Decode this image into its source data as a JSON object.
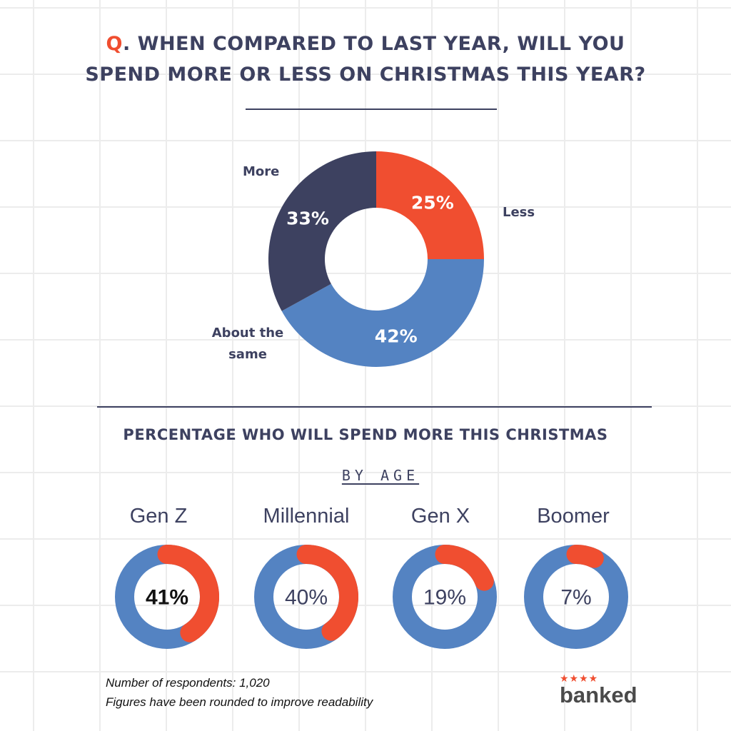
{
  "title": {
    "prefix": "Q",
    "line1_rest": ". WHEN COMPARED TO LAST YEAR, WILL YOU",
    "line2": "SPEND MORE OR LESS ON CHRISTMAS THIS YEAR?"
  },
  "colors": {
    "less": "#f04e30",
    "about_same": "#5483c2",
    "more": "#3d4160",
    "text": "#3d4160"
  },
  "chart_data": [
    {
      "type": "pie",
      "slices": [
        {
          "label": "Less",
          "value": 25,
          "display": "25%"
        },
        {
          "label": "About the same",
          "value": 42,
          "display": "42%"
        },
        {
          "label": "More",
          "value": 33,
          "display": "33%"
        }
      ],
      "labels": {
        "more": "More",
        "less": "Less",
        "about_same_line1": "About the",
        "about_same_line2": "same"
      }
    },
    {
      "type": "pie",
      "title": "PERCENTAGE WHO WILL SPEND MORE THIS CHRISTMAS",
      "subtitle": "BY AGE",
      "categories": [
        "Gen Z",
        "Millennial",
        "Gen X",
        "Boomer"
      ],
      "values": [
        41,
        40,
        19,
        7
      ],
      "display": [
        "41%",
        "40%",
        "19%",
        "7%"
      ]
    }
  ],
  "notes": {
    "line1": "Number of respondents: 1,020",
    "line2": "Figures have been rounded to improve readability"
  },
  "logo": {
    "stars": "★★★★",
    "text": "banked"
  }
}
